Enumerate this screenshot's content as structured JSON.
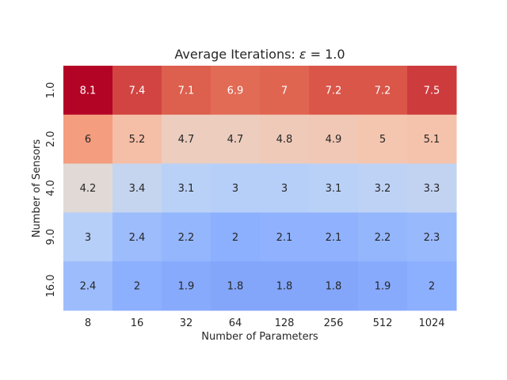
{
  "chart_data": {
    "type": "heatmap",
    "title_prefix": "Average Iterations: ",
    "title_symbol": "ε",
    "title_suffix": " = 1.0",
    "xlabel": "Number of Parameters",
    "ylabel": "Number of Sensors",
    "x_categories": [
      "8",
      "16",
      "32",
      "64",
      "128",
      "256",
      "512",
      "1024"
    ],
    "y_categories": [
      "1.0",
      "2.0",
      "4.0",
      "9.0",
      "16.0"
    ],
    "values": [
      [
        8.1,
        7.4,
        7.1,
        6.9,
        7,
        7.2,
        7.2,
        7.5
      ],
      [
        6,
        5.2,
        4.7,
        4.7,
        4.8,
        4.9,
        5,
        5.1
      ],
      [
        4.2,
        3.4,
        3.1,
        3,
        3,
        3.1,
        3.2,
        3.3
      ],
      [
        3,
        2.4,
        2.2,
        2,
        2.1,
        2.1,
        2.2,
        2.3
      ],
      [
        2.4,
        2,
        1.9,
        1.8,
        1.8,
        1.8,
        1.9,
        2
      ]
    ],
    "colormap": "coolwarm",
    "vmin": 1.8,
    "vmax": 8.1,
    "annotated": true,
    "colorbar": false
  }
}
